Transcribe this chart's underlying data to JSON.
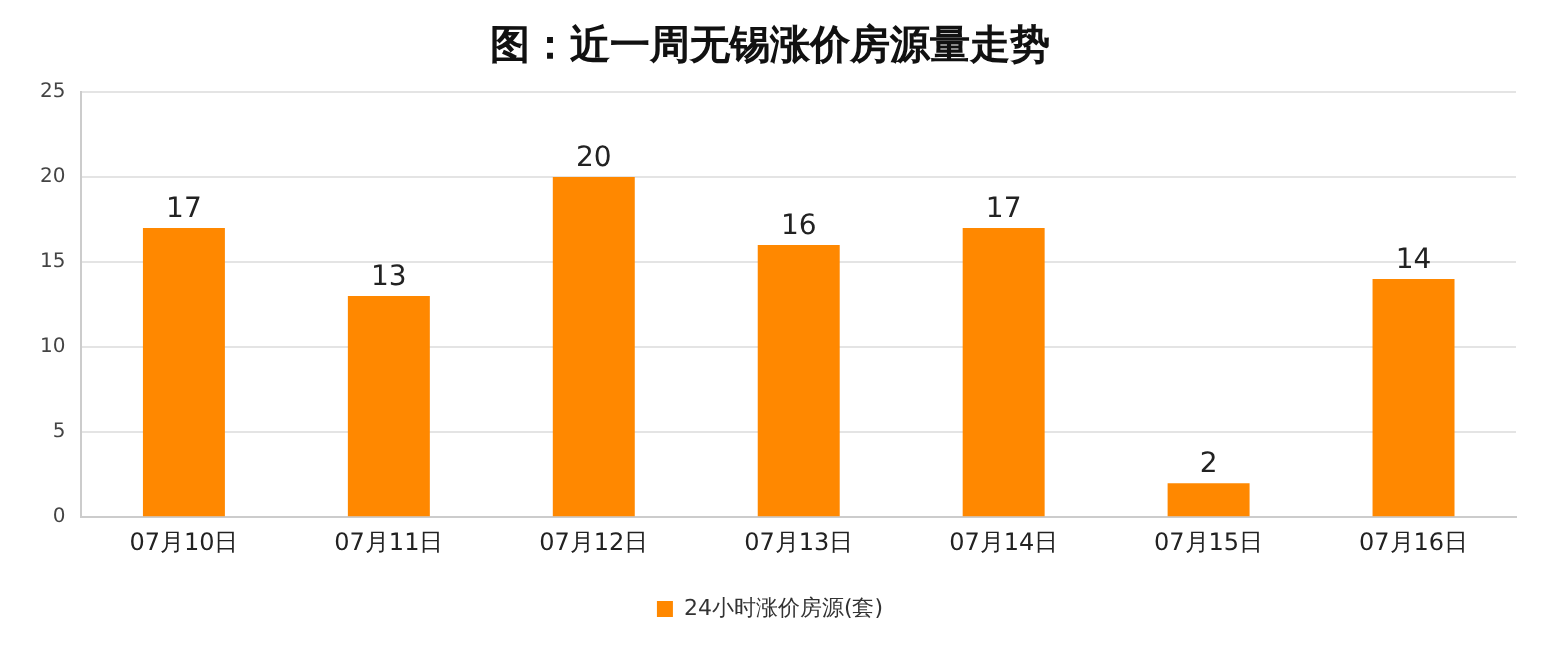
{
  "chart_data": {
    "type": "bar",
    "title": "图：近一周无锡涨价房源量走势",
    "categories": [
      "07月10日",
      "07月11日",
      "07月12日",
      "07月13日",
      "07月14日",
      "07月15日",
      "07月16日"
    ],
    "series": [
      {
        "name": "24小时涨价房源(套)",
        "color": "#ff8800",
        "values": [
          17,
          13,
          20,
          16,
          17,
          2,
          14
        ]
      }
    ],
    "ylim": [
      0,
      25
    ],
    "yticks": [
      0,
      5,
      10,
      15,
      20,
      25
    ],
    "grid": "y",
    "legend": "bottom",
    "data_labels": true
  }
}
